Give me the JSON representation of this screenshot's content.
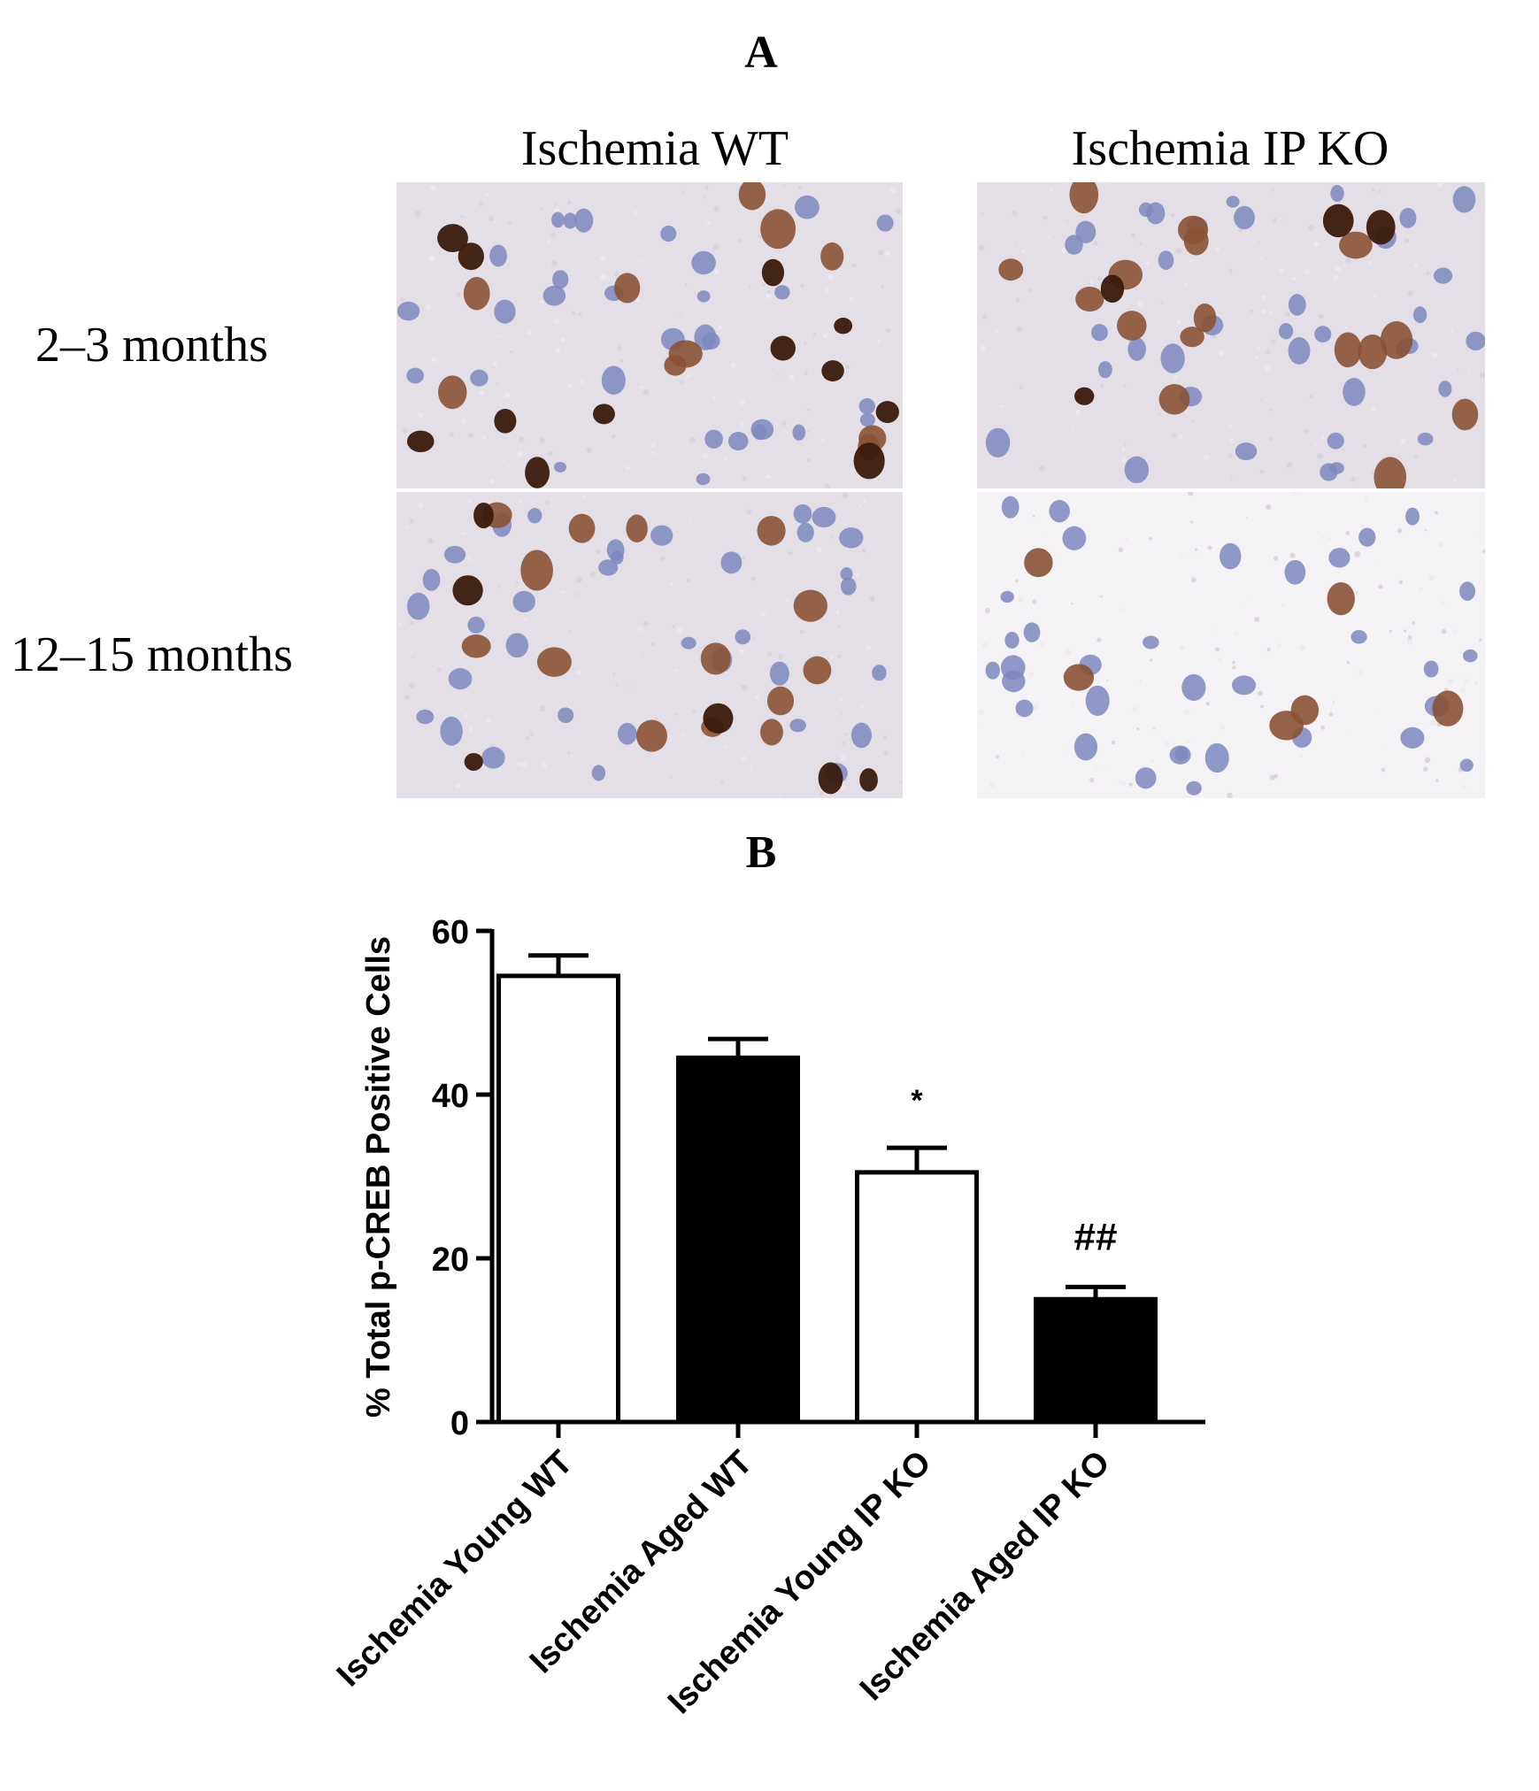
{
  "panel_a": {
    "letter": "A",
    "columns": [
      "Ischemia WT",
      "Ischemia IP KO"
    ],
    "rows": [
      "2–3 months",
      "12–15 months"
    ]
  },
  "panel_b": {
    "letter": "B"
  },
  "colors": {
    "background_wt_young": "#e4dee6",
    "background_ko_aged": "#f4f2f5",
    "nucleus_brown_dark": "#3a1a0c",
    "nucleus_brown": "#8a5236",
    "nucleus_blue": "#7d88bd",
    "bar_open": "#ffffff",
    "bar_filled": "#000000"
  },
  "chart_data": {
    "type": "bar",
    "categories": [
      "Ischemia Young WT",
      "Ischemia Aged WT",
      "Ischemia Young IP KO",
      "Ischemia Aged IP KO"
    ],
    "values": [
      54.5,
      44.5,
      30.5,
      15
    ],
    "errors": [
      2.5,
      2.3,
      3.0,
      1.5
    ],
    "fills": [
      "open",
      "filled",
      "open",
      "filled"
    ],
    "annotations": [
      "",
      "",
      "*",
      "##"
    ],
    "ylabel": "% Total p-CREB Positive Cells",
    "ylim": [
      0,
      60
    ],
    "yticks": [
      0,
      20,
      40,
      60
    ],
    "grid": false
  }
}
